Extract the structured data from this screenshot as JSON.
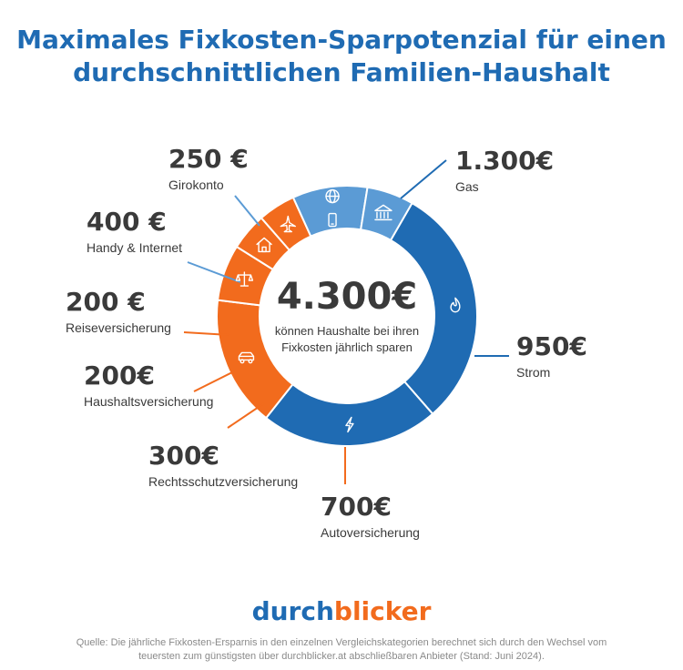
{
  "title_line1": "Maximales Fixkosten-Sparpotenzial für einen",
  "title_line2": "durchschnittlichen Familien-Haushalt",
  "center_total": "4.300€",
  "center_line1": "können Haushalte bei ihren",
  "center_line2": "Fixkosten jährlich sparen",
  "colors": {
    "blue": "#1f6bb3",
    "light_blue": "#5b9bd5",
    "orange": "#f26b1d",
    "title": "#1f6bb3",
    "text": "#3a3a3a"
  },
  "chart_data": {
    "type": "pie",
    "variant": "donut",
    "unit": "€",
    "total": 4300,
    "slices": [
      {
        "name": "Gas",
        "value": 1300,
        "label": "1.300€",
        "color": "#1f6bb3",
        "icon": "flame-icon"
      },
      {
        "name": "Strom",
        "value": 950,
        "label": "950€",
        "color": "#1f6bb3",
        "icon": "lightning-icon"
      },
      {
        "name": "Autoversicherung",
        "value": 700,
        "label": "700€",
        "color": "#f26b1d",
        "icon": "car-icon"
      },
      {
        "name": "Rechtsschutzversicherung",
        "value": 300,
        "label": "300€",
        "color": "#f26b1d",
        "icon": "scales-icon"
      },
      {
        "name": "Haushaltsversicherung",
        "value": 200,
        "label": "200€",
        "color": "#f26b1d",
        "icon": "house-icon"
      },
      {
        "name": "Reiseversicherung",
        "value": 200,
        "label": "200 €",
        "color": "#f26b1d",
        "icon": "airplane-icon"
      },
      {
        "name": "Handy & Internet",
        "value": 400,
        "label": "400 €",
        "color": "#5b9bd5",
        "icon": "globe-phone-icon"
      },
      {
        "name": "Girokonto",
        "value": 250,
        "label": "250 €",
        "color": "#5b9bd5",
        "icon": "bank-icon"
      }
    ]
  },
  "brand": {
    "part1": "durch",
    "part2": "blicker"
  },
  "footnote": {
    "line1": "Quelle: Die jährliche Fixkosten-Ersparnis in den einzelnen Vergleichskategorien berechnet sich durch den Wechsel vom",
    "line2": "teuersten zum günstigsten über durchblicker.at abschließbaren Anbieter (Stand: Juni 2024)."
  }
}
